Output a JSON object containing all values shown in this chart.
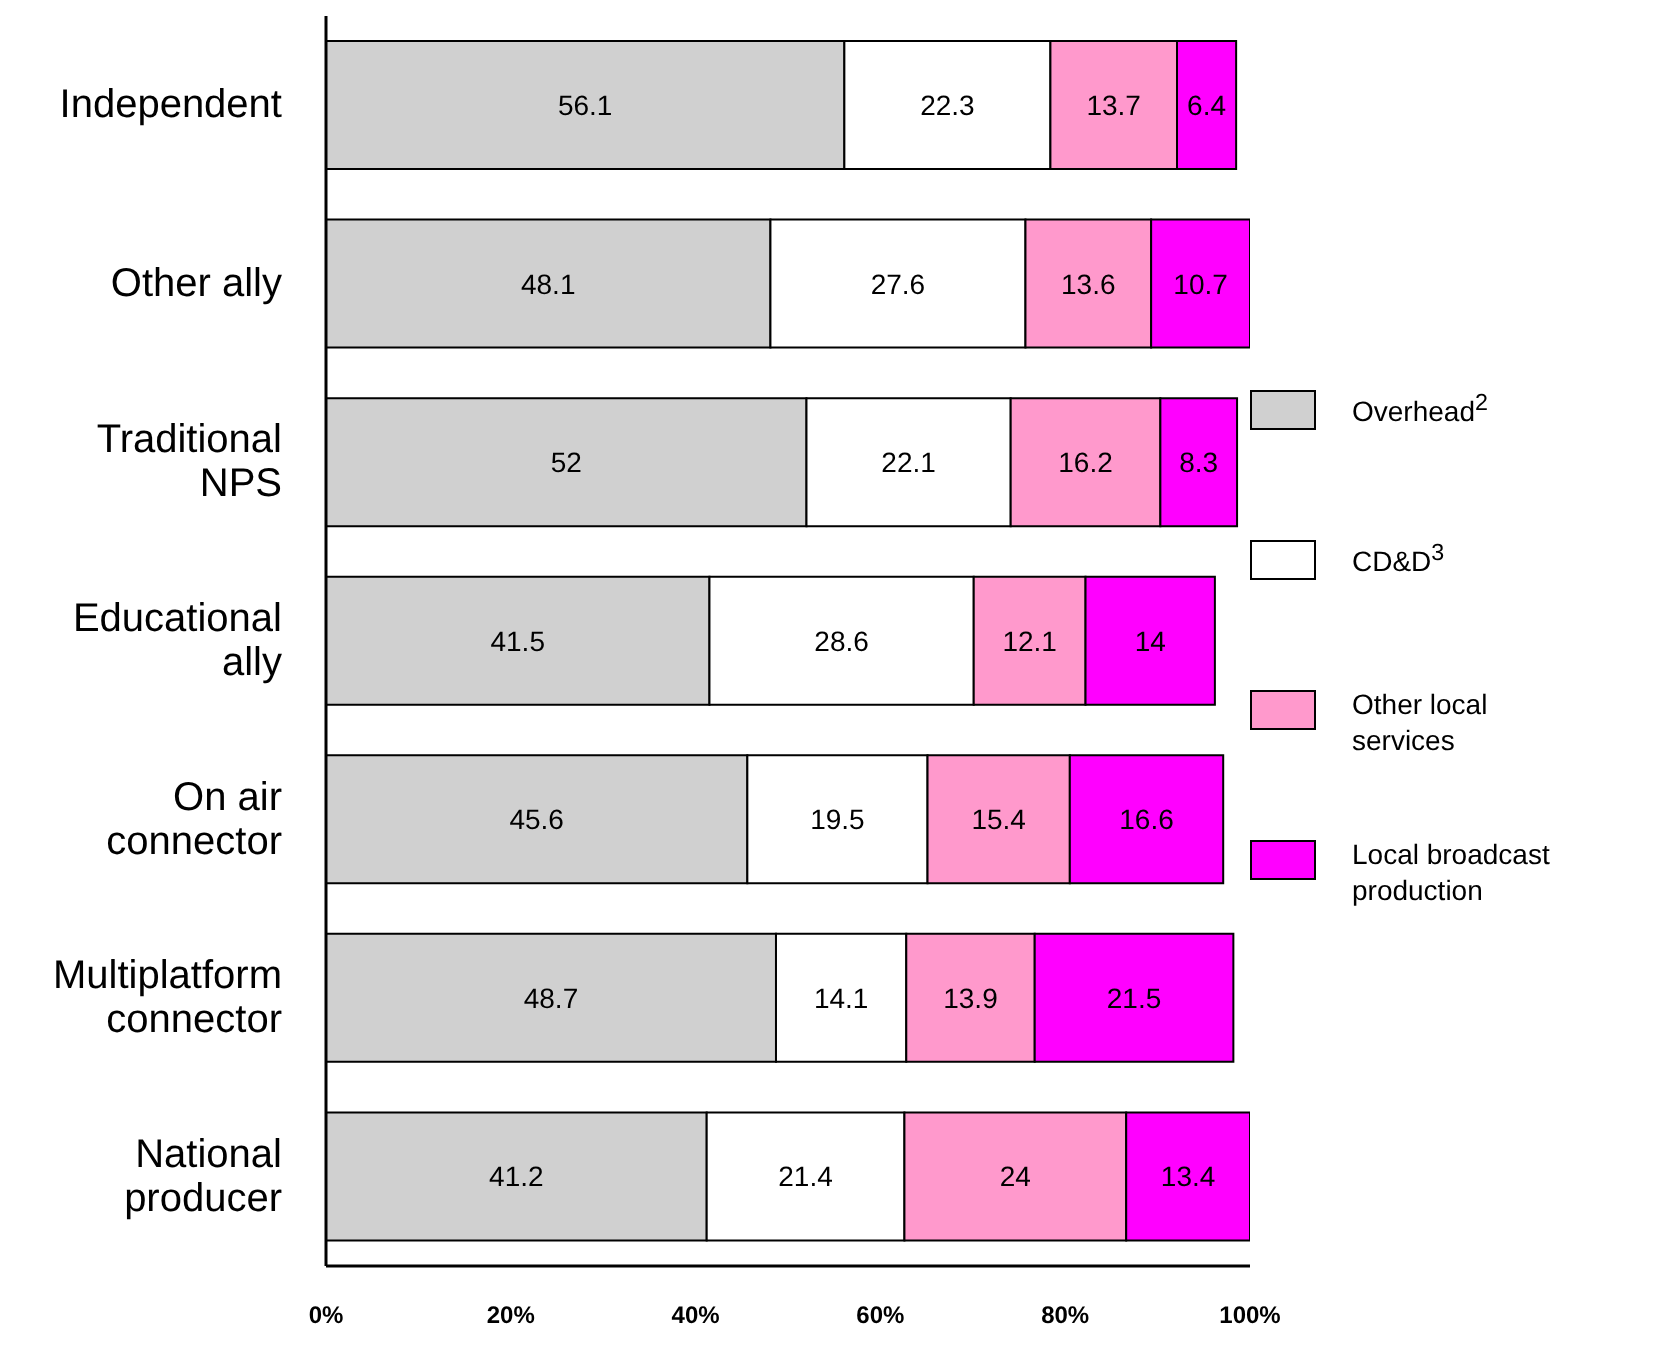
{
  "chart_data": {
    "type": "bar",
    "orientation": "horizontal",
    "stacked": true,
    "categories": [
      "Independent",
      "Other ally",
      "Traditional NPS",
      "Educational ally",
      "On air connector",
      "Multiplatform connector",
      "National producer"
    ],
    "series": [
      {
        "name": "Overhead$^{2}$",
        "color": "#d0d0d0",
        "values": [
          56.1,
          48.1,
          52,
          41.5,
          45.6,
          48.7,
          41.2
        ]
      },
      {
        "name": "CD&D$^{3}$",
        "color": "#ffffff",
        "values": [
          22.3,
          27.6,
          22.1,
          28.6,
          19.5,
          14.1,
          21.4
        ]
      },
      {
        "name": "Other local services",
        "color": "#ff99cc",
        "values": [
          13.7,
          13.6,
          16.2,
          12.1,
          15.4,
          13.9,
          24
        ]
      },
      {
        "name": "Local broadcast production",
        "color": "#ff00ff",
        "values": [
          6.4,
          10.7,
          8.3,
          14,
          16.6,
          21.5,
          13.4
        ]
      }
    ],
    "xlim": [
      0,
      100
    ],
    "xticks": [
      {
        "value": 0,
        "label": "0%"
      },
      {
        "value": 20,
        "label": "20%"
      },
      {
        "value": 40,
        "label": "40%"
      },
      {
        "value": 60,
        "label": "60%"
      },
      {
        "value": 80,
        "label": "80%"
      },
      {
        "value": 100,
        "label": "100%"
      }
    ],
    "data_labels": true,
    "legend": "right",
    "grid": false
  }
}
